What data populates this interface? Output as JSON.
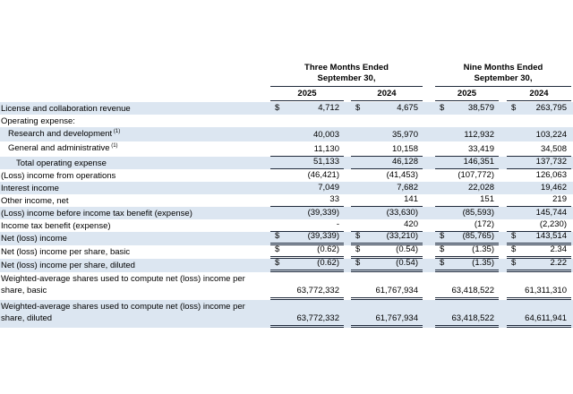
{
  "currency_symbol": "$",
  "colors": {
    "band": "#dce6f1",
    "rule": "#212b3c",
    "text": "#000000",
    "background": "#ffffff"
  },
  "header": {
    "groups": [
      {
        "line1": "Three Months Ended",
        "line2": "September 30,",
        "years": [
          "2025",
          "2024"
        ]
      },
      {
        "line1": "Nine Months Ended",
        "line2": "September 30,",
        "years": [
          "2025",
          "2024"
        ]
      }
    ]
  },
  "rows": [
    {
      "label": "License and collaboration revenue",
      "indent": 0,
      "band": true,
      "dollar": true,
      "underline": "none",
      "values": [
        "4,712",
        "4,675",
        "38,579",
        "263,795"
      ]
    },
    {
      "label": "Operating expense:",
      "indent": 0,
      "band": false,
      "dollar": false,
      "underline": "none",
      "values": null
    },
    {
      "label": "Research and development",
      "sup": "(1)",
      "indent": 1,
      "band": true,
      "dollar": false,
      "underline": "none",
      "h": 16,
      "values": [
        "40,003",
        "35,970",
        "112,932",
        "103,224"
      ]
    },
    {
      "label": "General and administrative",
      "sup": "(1)",
      "indent": 1,
      "band": false,
      "dollar": false,
      "underline": "single",
      "h": 17,
      "values": [
        "11,130",
        "10,158",
        "33,419",
        "34,508"
      ]
    },
    {
      "label": "Total operating expense",
      "indent": 2,
      "band": true,
      "dollar": false,
      "underline": "single",
      "values": [
        "51,133",
        "46,128",
        "146,351",
        "137,732"
      ]
    },
    {
      "label": "(Loss) income from operations",
      "indent": 0,
      "band": false,
      "dollar": false,
      "underline": "none",
      "values": [
        "(46,421)",
        "(41,453)",
        "(107,772)",
        "126,063"
      ]
    },
    {
      "label": "Interest income",
      "indent": 0,
      "band": true,
      "dollar": false,
      "underline": "none",
      "values": [
        "7,049",
        "7,682",
        "22,028",
        "19,462"
      ]
    },
    {
      "label": "Other income, net",
      "indent": 0,
      "band": false,
      "dollar": false,
      "underline": "single",
      "values": [
        "33",
        "141",
        "151",
        "219"
      ]
    },
    {
      "label": "(Loss) income before income tax benefit (expense)",
      "indent": 0,
      "band": true,
      "dollar": false,
      "underline": "none",
      "values": [
        "(39,339)",
        "(33,630)",
        "(85,593)",
        "145,744"
      ]
    },
    {
      "label": "Income tax benefit (expense)",
      "indent": 0,
      "band": false,
      "dollar": false,
      "underline": "single",
      "values": [
        "-",
        "420",
        "(172)",
        "(2,230)"
      ]
    },
    {
      "label": "Net (loss) income",
      "indent": 0,
      "band": true,
      "dollar": true,
      "underline": "double",
      "h": 15,
      "values": [
        "(39,339)",
        "(33,210)",
        "(85,765)",
        "143,514"
      ]
    },
    {
      "label": "Net (loss) income per share, basic",
      "indent": 0,
      "band": false,
      "dollar": true,
      "underline": "double",
      "h": 15,
      "values": [
        "(0.62)",
        "(0.54)",
        "(1.35)",
        "2.34"
      ]
    },
    {
      "label": "Net (loss) income per share, diluted",
      "indent": 0,
      "band": true,
      "dollar": true,
      "underline": "double",
      "h": 15,
      "values": [
        "(0.62)",
        "(0.54)",
        "(1.35)",
        "2.22"
      ]
    },
    {
      "label": "Weighted-average shares used to compute net (loss) income per",
      "label_line2": "share, basic",
      "two_line": true,
      "indent": 0,
      "band": false,
      "dollar": false,
      "underline": "double",
      "values": [
        "63,772,332",
        "61,767,934",
        "63,418,522",
        "61,311,310"
      ]
    },
    {
      "label": "Weighted-average shares used to compute net (loss) income per",
      "label_line2": "share, diluted",
      "two_line": true,
      "indent": 0,
      "band": true,
      "dollar": false,
      "underline": "double",
      "values": [
        "63,772,332",
        "61,767,934",
        "63,418,522",
        "64,611,941"
      ]
    }
  ]
}
